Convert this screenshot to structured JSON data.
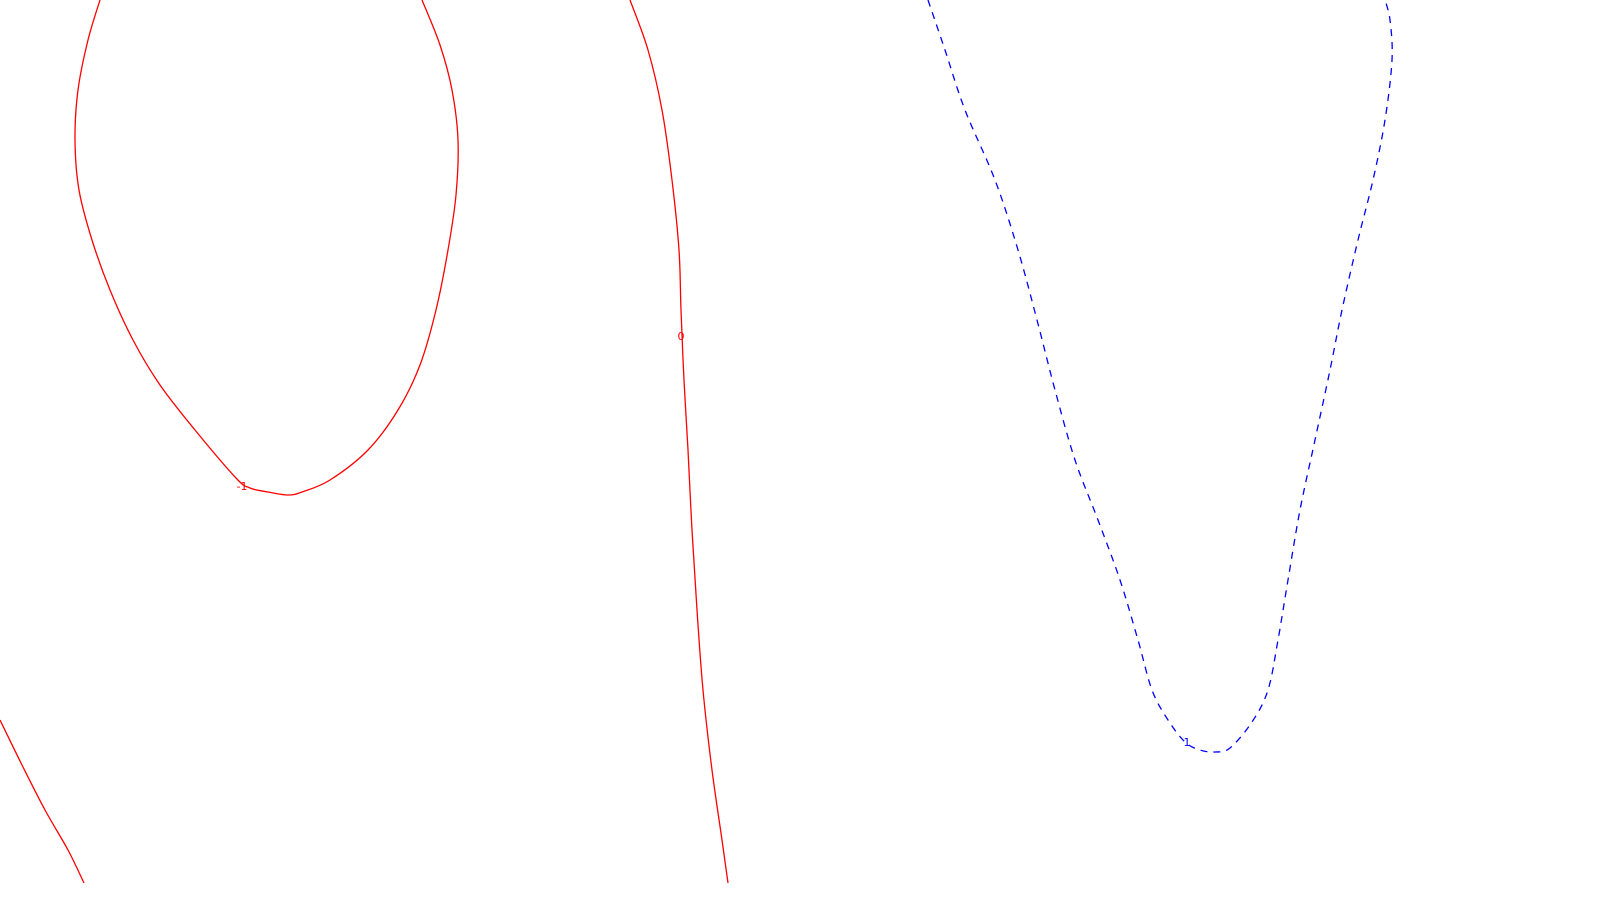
{
  "chart_data": {
    "type": "contour",
    "title": "",
    "xlabel": "",
    "ylabel": "",
    "grid": false,
    "legend": "none",
    "colors": {
      "negative_or_zero": "#ff0000",
      "positive": "#0000ff",
      "background": "#ffffff"
    },
    "contours": [
      {
        "level": -1,
        "label": "-1",
        "color": "#ff0000",
        "linestyle": "solid",
        "path": [
          [
            100,
            0
          ],
          [
            88,
            40
          ],
          [
            78,
            90
          ],
          [
            75,
            140
          ],
          [
            79,
            190
          ],
          [
            92,
            240
          ],
          [
            110,
            290
          ],
          [
            133,
            340
          ],
          [
            160,
            385
          ],
          [
            195,
            430
          ],
          [
            236,
            478
          ],
          [
            250,
            488
          ],
          [
            268,
            492
          ],
          [
            288,
            495
          ],
          [
            302,
            492
          ],
          [
            330,
            480
          ],
          [
            368,
            450
          ],
          [
            398,
            410
          ],
          [
            420,
            365
          ],
          [
            436,
            310
          ],
          [
            448,
            250
          ],
          [
            456,
            195
          ],
          [
            458,
            140
          ],
          [
            452,
            90
          ],
          [
            440,
            45
          ],
          [
            422,
            0
          ]
        ]
      },
      {
        "level": 0,
        "label": "0",
        "color": "#ff0000",
        "linestyle": "solid",
        "path": [
          [
            630,
            0
          ],
          [
            648,
            50
          ],
          [
            662,
            110
          ],
          [
            672,
            180
          ],
          [
            679,
            250
          ],
          [
            681,
            310
          ],
          [
            684,
            380
          ],
          [
            688,
            450
          ],
          [
            692,
            530
          ],
          [
            697,
            610
          ],
          [
            703,
            690
          ],
          [
            712,
            770
          ],
          [
            722,
            840
          ],
          [
            728,
            883
          ]
        ]
      },
      {
        "level": 0,
        "label": "",
        "color": "#ff0000",
        "linestyle": "solid",
        "path": [
          [
            0,
            720
          ],
          [
            22,
            765
          ],
          [
            45,
            810
          ],
          [
            68,
            850
          ],
          [
            84,
            883
          ]
        ]
      },
      {
        "level": 1,
        "label": "1",
        "color": "#0000ff",
        "linestyle": "dashed",
        "path": [
          [
            928,
            0
          ],
          [
            945,
            50
          ],
          [
            965,
            110
          ],
          [
            995,
            180
          ],
          [
            1018,
            250
          ],
          [
            1037,
            320
          ],
          [
            1055,
            390
          ],
          [
            1075,
            460
          ],
          [
            1098,
            520
          ],
          [
            1120,
            580
          ],
          [
            1138,
            640
          ],
          [
            1152,
            690
          ],
          [
            1168,
            720
          ],
          [
            1185,
            742
          ],
          [
            1200,
            750
          ],
          [
            1215,
            752
          ],
          [
            1230,
            748
          ],
          [
            1252,
            722
          ],
          [
            1268,
            690
          ],
          [
            1278,
            640
          ],
          [
            1288,
            580
          ],
          [
            1300,
            510
          ],
          [
            1315,
            440
          ],
          [
            1330,
            370
          ],
          [
            1342,
            310
          ],
          [
            1358,
            240
          ],
          [
            1373,
            180
          ],
          [
            1385,
            120
          ],
          [
            1392,
            60
          ],
          [
            1390,
            20
          ],
          [
            1385,
            0
          ]
        ]
      }
    ],
    "labels": [
      {
        "text": "-1",
        "color": "#ff0000",
        "at": [
          242,
          490
        ]
      },
      {
        "text": "0",
        "color": "#ff0000",
        "at": [
          681,
          340
        ]
      },
      {
        "text": "1",
        "color": "#0000ff",
        "at": [
          1187,
          746
        ]
      }
    ]
  }
}
